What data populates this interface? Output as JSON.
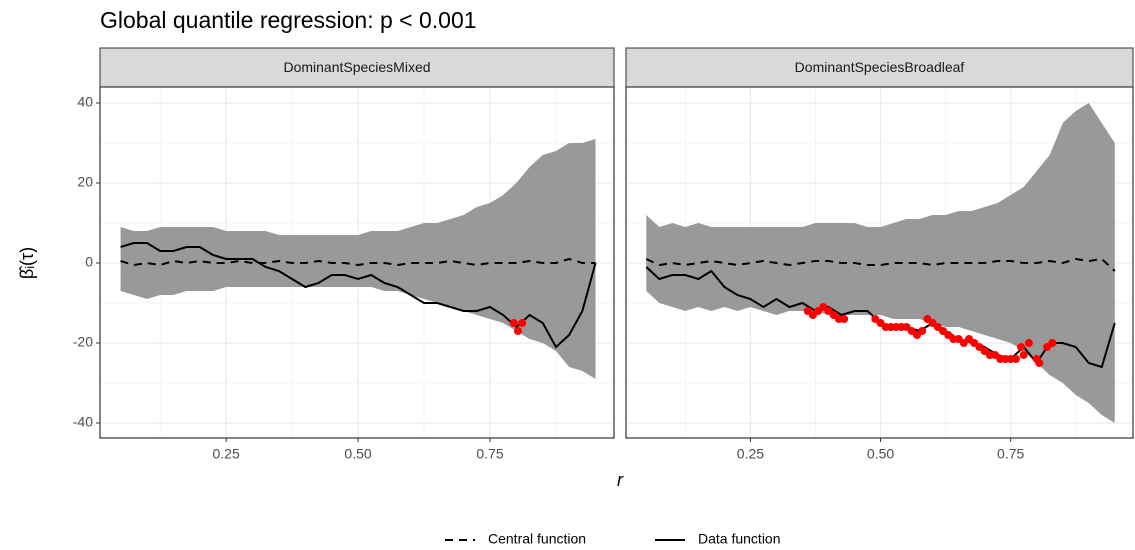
{
  "chart_data": {
    "type": "line",
    "title": "Global quantile regression: p < 0.001",
    "xlabel": "r",
    "ylabel": "β̂ᵢ(τ)",
    "xlim": [
      0.011,
      0.985
    ],
    "ylim": [
      -43.75,
      44
    ],
    "xticks": [
      0.25,
      {
        "value": 0.5,
        "label": "0.50"
      },
      0.75
    ],
    "yticks": [
      -40,
      -20,
      0,
      20,
      40
    ],
    "minor_xticks": [
      0.125,
      0.375,
      0.625,
      0.875
    ],
    "minor_yticks": [
      -30,
      -10,
      10,
      30
    ],
    "grid": true,
    "legend": "bottom",
    "envelope_color": "#999999",
    "significant_color": "#ff0000",
    "series": [
      {
        "name": "Central function",
        "color": "#000000",
        "dash": "dashed"
      },
      {
        "name": "Data function",
        "color": "#000000",
        "dash": "solid"
      }
    ],
    "panels": [
      {
        "strip": "DominantSpeciesMixed",
        "x": [
          0.05,
          0.075,
          0.1,
          0.125,
          0.15,
          0.175,
          0.2,
          0.225,
          0.25,
          0.275,
          0.3,
          0.325,
          0.35,
          0.375,
          0.4,
          0.425,
          0.45,
          0.475,
          0.5,
          0.525,
          0.55,
          0.575,
          0.6,
          0.625,
          0.65,
          0.675,
          0.7,
          0.725,
          0.75,
          0.775,
          0.8,
          0.825,
          0.85,
          0.875,
          0.9,
          0.925,
          0.95
        ],
        "upper": [
          9,
          8,
          8,
          9,
          9,
          9,
          9,
          9,
          8,
          8,
          8,
          8,
          7,
          7,
          7,
          7,
          7,
          7,
          7,
          8,
          8,
          8,
          9,
          10,
          10,
          11,
          12,
          14,
          15,
          17,
          20,
          24,
          27,
          28,
          30,
          30,
          31
        ],
        "lower": [
          -7,
          -8,
          -9,
          -8,
          -8,
          -7,
          -7,
          -7,
          -6,
          -6,
          -6,
          -6,
          -6,
          -6,
          -6,
          -6,
          -6,
          -6,
          -6,
          -6,
          -7,
          -7,
          -8,
          -9,
          -10,
          -11,
          -12,
          -13,
          -14,
          -15,
          -17,
          -19,
          -20,
          -22,
          -26,
          -27,
          -29
        ],
        "central": [
          0.5,
          -0.5,
          0,
          -0.5,
          0.5,
          0,
          0.5,
          0,
          0,
          0.5,
          0,
          0,
          0.5,
          0,
          0,
          0.5,
          0,
          0,
          -0.5,
          0,
          0,
          -0.5,
          0,
          0,
          0,
          0.5,
          0,
          -0.5,
          0,
          0,
          0,
          0.5,
          0,
          0,
          1,
          0,
          0
        ],
        "data": [
          4,
          5,
          5,
          3,
          3,
          4,
          4,
          2,
          1,
          1,
          1,
          -1,
          -2,
          -4,
          -6,
          -5,
          -3,
          -3,
          -4,
          -3,
          -5,
          -6,
          -8,
          -10,
          -10,
          -11,
          -12,
          -12,
          -11,
          -13,
          -16,
          -13,
          -15,
          -21,
          -18,
          -12,
          0
        ],
        "significant_x": [
          0.795,
          0.803,
          0.811
        ],
        "significant_values": [
          -15,
          -17,
          -15
        ]
      },
      {
        "strip": "DominantSpeciesBroadleaf",
        "x": [
          0.05,
          0.075,
          0.1,
          0.125,
          0.15,
          0.175,
          0.2,
          0.225,
          0.25,
          0.275,
          0.3,
          0.325,
          0.35,
          0.375,
          0.4,
          0.425,
          0.45,
          0.475,
          0.5,
          0.525,
          0.55,
          0.575,
          0.6,
          0.625,
          0.65,
          0.675,
          0.7,
          0.725,
          0.75,
          0.775,
          0.8,
          0.825,
          0.85,
          0.875,
          0.9,
          0.925,
          0.95
        ],
        "upper": [
          12,
          9,
          10,
          9,
          10,
          9,
          9,
          9,
          9,
          9,
          9,
          9,
          9,
          10,
          10,
          10,
          10,
          9,
          9,
          10,
          11,
          11,
          12,
          12,
          13,
          13,
          14,
          15,
          17,
          19,
          23,
          27,
          35,
          38,
          40,
          35,
          30
        ],
        "lower": [
          -7,
          -10,
          -11,
          -12,
          -11,
          -12,
          -11,
          -12,
          -11,
          -12,
          -13,
          -12,
          -12,
          -12,
          -13,
          -13,
          -13,
          -13,
          -13,
          -14,
          -14,
          -14,
          -15,
          -16,
          -16,
          -17,
          -18,
          -19,
          -20,
          -22,
          -25,
          -28,
          -30,
          -33,
          -35,
          -38,
          -40
        ],
        "central": [
          1,
          -0.5,
          0,
          -0.5,
          0,
          0.5,
          0,
          -0.5,
          0,
          0.5,
          0,
          -0.5,
          0,
          0.5,
          0.5,
          0,
          0,
          -0.5,
          -0.5,
          0,
          0,
          0,
          -0.5,
          0,
          0,
          0,
          0,
          0.5,
          0.5,
          0,
          0,
          0.5,
          0,
          1,
          0.5,
          1,
          -2
        ],
        "data": [
          -1,
          -4,
          -3,
          -3,
          -4,
          -2,
          -6,
          -8,
          -9,
          -11,
          -9,
          -11,
          -10,
          -12,
          -11,
          -13,
          -12,
          -12,
          -15,
          -16,
          -16,
          -17,
          -15,
          -17,
          -19,
          -20,
          -21,
          -23,
          -24,
          -21,
          -25,
          -20,
          -20,
          -21,
          -25,
          -26,
          -15
        ],
        "significant_x": [
          0.36,
          0.37,
          0.38,
          0.39,
          0.4,
          0.41,
          0.42,
          0.43,
          0.49,
          0.5,
          0.51,
          0.52,
          0.53,
          0.54,
          0.55,
          0.56,
          0.57,
          0.58,
          0.59,
          0.6,
          0.61,
          0.62,
          0.63,
          0.64,
          0.65,
          0.66,
          0.67,
          0.68,
          0.69,
          0.7,
          0.71,
          0.72,
          0.73,
          0.74,
          0.75,
          0.76,
          0.77,
          0.775,
          0.785,
          0.8,
          0.805,
          0.82,
          0.83
        ],
        "significant_values": [
          -12,
          -13,
          -12,
          -11,
          -12,
          -13,
          -14,
          -14,
          -14,
          -15,
          -16,
          -16,
          -16,
          -16,
          -16,
          -17,
          -18,
          -17,
          -14,
          -15,
          -16,
          -17,
          -18,
          -19,
          -19,
          -20,
          -19,
          -20,
          -21,
          -22,
          -23,
          -23,
          -24,
          -24,
          -24,
          -24,
          -21,
          -23,
          -20,
          -24,
          -25,
          -21,
          -20
        ]
      }
    ]
  }
}
